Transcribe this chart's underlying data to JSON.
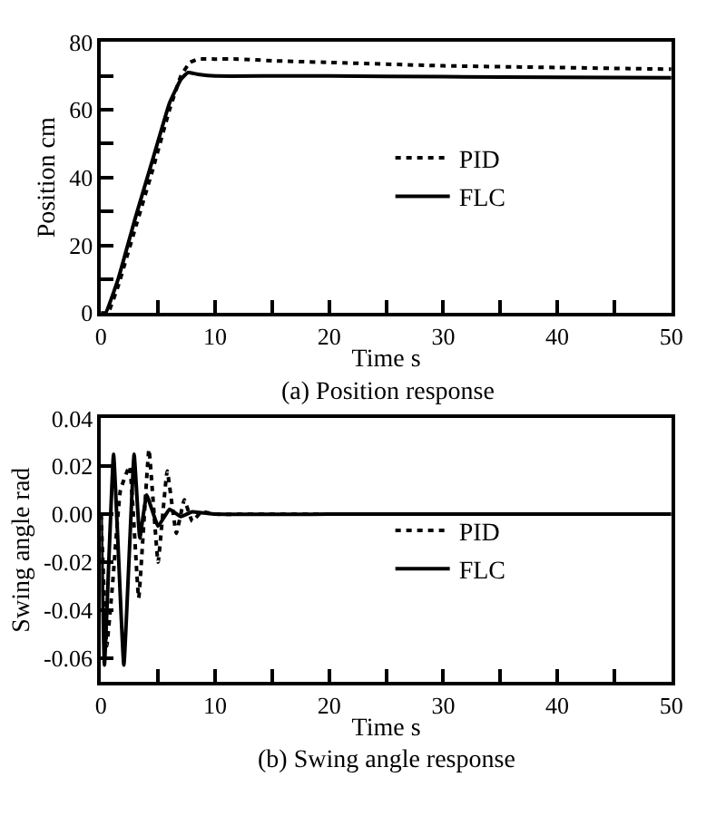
{
  "chart_data": [
    {
      "type": "line",
      "title": "(a) Position response",
      "xlabel": "Time s",
      "ylabel": "Position cm",
      "xlim": [
        0,
        50
      ],
      "xticks": [
        0,
        {
          "value": 5,
          "label": null
        },
        10,
        {
          "value": 15,
          "label": null
        },
        20,
        {
          "value": 25,
          "label": null
        },
        30,
        {
          "value": 35,
          "label": null
        },
        40,
        {
          "value": 45,
          "label": null
        },
        50
      ],
      "ylim": [
        0,
        80
      ],
      "yticks": [
        0,
        {
          "value": 10,
          "label": null
        },
        20,
        {
          "value": 30,
          "label": null
        },
        40,
        {
          "value": 50,
          "label": null
        },
        60,
        {
          "value": 70,
          "label": null
        },
        80
      ],
      "legend": "right",
      "marker": "none",
      "series": [
        {
          "name": "PID",
          "color": "#000000",
          "line_style": "dotted",
          "x": [
            0,
            0.6,
            1.5,
            3,
            4.5,
            6,
            7,
            7.8,
            8.5,
            10,
            12,
            15,
            20,
            30,
            40,
            50
          ],
          "values": [
            0,
            0,
            8,
            25,
            42,
            60,
            70,
            74,
            75,
            75,
            75,
            74.5,
            74,
            73,
            72.5,
            72
          ]
        },
        {
          "name": "FLC",
          "color": "#000000",
          "line_style": "solid",
          "x": [
            0,
            0.4,
            1.5,
            3,
            4.5,
            6,
            7,
            7.6,
            8.5,
            10,
            15,
            20,
            30,
            40,
            50
          ],
          "values": [
            0,
            0,
            10,
            28,
            45,
            62,
            69,
            71,
            70.5,
            70,
            70,
            70,
            69.8,
            69.6,
            69.5
          ]
        }
      ]
    },
    {
      "type": "line",
      "title": "(b) Swing angle response",
      "xlabel": "Time s",
      "ylabel": "Swing angle rad",
      "xlim": [
        0,
        50
      ],
      "xticks": [
        0,
        {
          "value": 5,
          "label": null
        },
        10,
        {
          "value": 15,
          "label": null
        },
        20,
        {
          "value": 25,
          "label": null
        },
        30,
        {
          "value": 35,
          "label": null
        },
        40,
        {
          "value": 45,
          "label": null
        },
        50
      ],
      "ylim": [
        -0.07,
        0.04
      ],
      "yticks": [
        {
          "value": -0.06,
          "label": "-0.06"
        },
        {
          "value": -0.04,
          "label": "-0.04"
        },
        {
          "value": -0.02,
          "label": "-0.02"
        },
        {
          "value": 0,
          "label": "0.00"
        },
        {
          "value": 0.02,
          "label": "0.02"
        },
        {
          "value": 0.04,
          "label": "0.04"
        }
      ],
      "legend": "right",
      "marker": "none",
      "series": [
        {
          "name": "PID",
          "color": "#000000",
          "line_style": "dotted",
          "x": [
            0,
            0.5,
            1,
            1.7,
            2.5,
            3.3,
            4.2,
            5,
            5.8,
            6.6,
            7.3,
            8,
            8.8,
            10,
            12,
            20,
            30,
            40,
            50
          ],
          "values": [
            0,
            -0.055,
            -0.03,
            0.01,
            0.02,
            -0.035,
            0.027,
            -0.02,
            0.018,
            -0.008,
            0.006,
            -0.003,
            0.001,
            0,
            0,
            0,
            0,
            0,
            0
          ]
        },
        {
          "name": "FLC",
          "color": "#000000",
          "line_style": "solid",
          "x": [
            0,
            0.3,
            1.1,
            2.0,
            2.9,
            3.4,
            4.0,
            5.0,
            6.0,
            7.0,
            8.0,
            10,
            20,
            30,
            40,
            50
          ],
          "values": [
            0,
            -0.063,
            0.025,
            -0.063,
            0.025,
            -0.01,
            0.008,
            -0.005,
            0.002,
            -0.001,
            0.001,
            0,
            0,
            0,
            0,
            0
          ]
        }
      ]
    }
  ]
}
